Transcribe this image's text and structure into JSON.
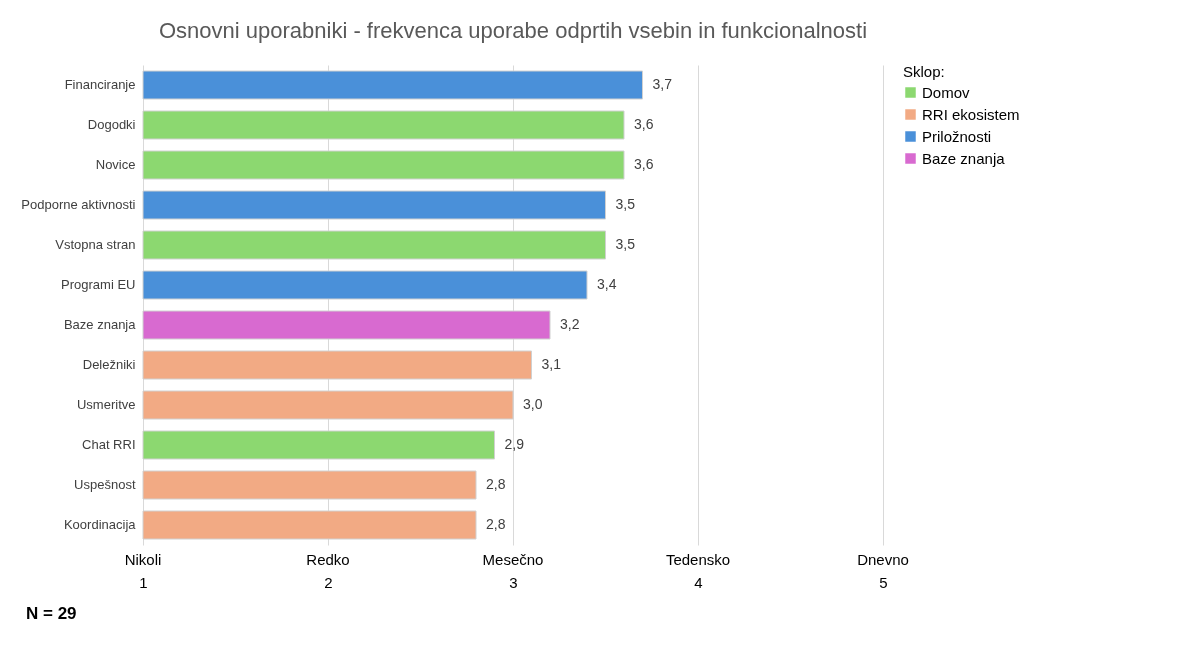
{
  "chart_data": {
    "type": "bar",
    "orientation": "horizontal",
    "title": "Osnovni uporabniki - frekvenca uporabe odprtih vsebin in funkcionalnosti",
    "categories": [
      "Financiranje",
      "Dogodki",
      "Novice",
      "Podporne aktivnosti",
      "Vstopna stran",
      "Programi EU",
      "Baze znanja",
      "Deležniki",
      "Usmeritve",
      "Chat RRI",
      "Uspešnost",
      "Koordinacija"
    ],
    "series": [
      {
        "name": "Domov",
        "color": "#8cd870",
        "values": [
          null,
          3.6,
          3.6,
          null,
          3.5,
          null,
          null,
          null,
          null,
          2.9,
          null,
          null
        ],
        "value_labels": [
          null,
          "3,6",
          "3,6",
          null,
          "3,5",
          null,
          null,
          null,
          null,
          "2,9",
          null,
          null
        ]
      },
      {
        "name": "RRI ekosistem",
        "color": "#f2aa84",
        "values": [
          null,
          null,
          null,
          null,
          null,
          null,
          null,
          3.1,
          3.0,
          null,
          2.8,
          2.8
        ],
        "value_labels": [
          null,
          null,
          null,
          null,
          null,
          null,
          null,
          "3,1",
          "3,0",
          null,
          "2,8",
          "2,8"
        ]
      },
      {
        "name": "Priložnosti",
        "color": "#4a90d9",
        "values": [
          3.7,
          null,
          null,
          3.5,
          null,
          3.4,
          null,
          null,
          null,
          null,
          null,
          null
        ],
        "value_labels": [
          "3,7",
          null,
          null,
          "3,5",
          null,
          "3,4",
          null,
          null,
          null,
          null,
          null,
          null
        ]
      },
      {
        "name": "Baze znanja",
        "color": "#d86ad0",
        "values": [
          null,
          null,
          null,
          null,
          null,
          null,
          3.2,
          null,
          null,
          null,
          null,
          null
        ],
        "value_labels": [
          null,
          null,
          null,
          null,
          null,
          null,
          "3,2",
          null,
          null,
          null,
          null,
          null
        ]
      }
    ],
    "xlim": [
      1,
      5
    ],
    "xticks": [
      1,
      2,
      3,
      4,
      5
    ],
    "grid": "x",
    "legend": "right",
    "legend_title": "Sklop:",
    "annotations": [
      "N = 29",
      "Nikoli",
      "Redko",
      "Mesečno",
      "Tedensko",
      "Dnevno"
    ]
  }
}
